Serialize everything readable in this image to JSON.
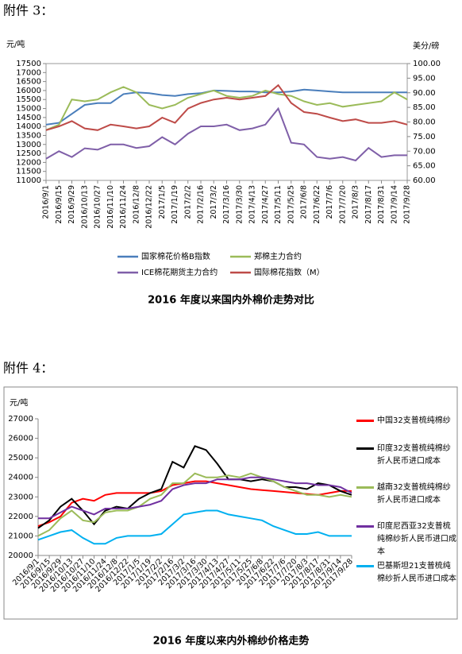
{
  "headings": [
    "附件 3：",
    "附件 4："
  ],
  "chart_data": [
    {
      "type": "line",
      "title": "2016 年度以来国内外棉价走势对比",
      "y_label": "元/吨",
      "y2_label": "美分/磅",
      "categories": [
        "2016/9/1",
        "2016/9/15",
        "2016/9/29",
        "2016/10/13",
        "2016/10/27",
        "2016/11/10",
        "2016/11/24",
        "2016/12/8",
        "2016/12/22",
        "2017/1/5",
        "2017/1/19",
        "2017/2/2",
        "2017/2/16",
        "2017/3/2",
        "2017/3/16",
        "2017/3/30",
        "2017/4/13",
        "2017/4/27",
        "2017/5/11",
        "2017/5/25",
        "2017/6/8",
        "2017/6/22",
        "2017/7/6",
        "2017/7/20",
        "2017/8/3",
        "2017/8/17",
        "2017/8/31",
        "2017/9/14",
        "2017/9/28"
      ],
      "ylim": [
        11000,
        17500
      ],
      "yticks": [
        11000,
        11500,
        12000,
        12500,
        13000,
        13500,
        14000,
        14500,
        15000,
        15500,
        16000,
        16500,
        17000,
        17500
      ],
      "y2lim": [
        60,
        100
      ],
      "y2ticks": [
        {
          "value": 60,
          "label": "60.00"
        },
        {
          "value": 65,
          "label": "65.00"
        },
        {
          "value": 70,
          "label": "70.00"
        },
        {
          "value": 75,
          "label": "75.00"
        },
        {
          "value": 80,
          "label": "80.00"
        },
        {
          "value": 85,
          "label": "85.00"
        },
        {
          "value": 90,
          "label": "90.00"
        },
        {
          "value": 95,
          "label": "95.00"
        },
        {
          "value": 100,
          "label": "100.00"
        }
      ],
      "series": [
        {
          "name": "国家棉花价格B指数",
          "color": "#4a7ebb",
          "values": [
            14100,
            14200,
            14700,
            15200,
            15300,
            15300,
            15800,
            15900,
            15850,
            15750,
            15700,
            15800,
            15850,
            16000,
            15980,
            15950,
            15950,
            15900,
            15900,
            15950,
            16050,
            16000,
            15950,
            15900,
            15900,
            15900,
            15900,
            15900,
            15900
          ]
        },
        {
          "name": "郑棉主力合约",
          "color": "#9bbb59",
          "values": [
            13800,
            14100,
            15500,
            15400,
            15500,
            15900,
            16200,
            15900,
            15200,
            15000,
            15200,
            15600,
            15800,
            16000,
            15700,
            15600,
            15700,
            16000,
            15800,
            15700,
            15400,
            15200,
            15300,
            15100,
            15200,
            15300,
            15400,
            15900,
            15500
          ]
        },
        {
          "name": "ICE棉花期货主力合约",
          "color": "#7f5fa8",
          "axis": "y2",
          "values": [
            67.4,
            70,
            68,
            71,
            70.5,
            72.3,
            72.3,
            71.1,
            71.7,
            74.8,
            72.3,
            76,
            78.5,
            78.5,
            79.1,
            77.2,
            77.8,
            79.1,
            84.6,
            72.9,
            72.3,
            68,
            67.4,
            68,
            66.8,
            71.1,
            68,
            68.6,
            68.6
          ]
        },
        {
          "name": "国际棉花指数（M）",
          "color": "#be4b48",
          "axis": "y2",
          "values": [
            77.2,
            78.5,
            80.3,
            77.8,
            77.2,
            79.1,
            78.5,
            77.8,
            78.5,
            81.5,
            79.7,
            84.6,
            86.5,
            87.7,
            88.3,
            87.7,
            88.3,
            88.9,
            92.6,
            86.5,
            83.4,
            82.8,
            81.5,
            80.3,
            80.9,
            79.7,
            79.7,
            80.3,
            79.1
          ]
        }
      ]
    },
    {
      "type": "line",
      "title": "2016 年度以来内外棉纱价格走势",
      "y_label": "元/吨",
      "categories": [
        "2016/9/1",
        "2016/9/15",
        "2016/9/29",
        "2016/10/13",
        "2016/10/27",
        "2016/11/10",
        "2016/11/24",
        "2016/12/8",
        "2016/12/22",
        "2017/1/5",
        "2017/1/19",
        "2017/2/2",
        "2017/2/16",
        "2017/3/2",
        "2017/3/16",
        "2017/3/30",
        "2017/4/13",
        "2017/4/27",
        "2017/5/11",
        "2017/5/25",
        "2017/6/8",
        "2017/6/22",
        "2017/7/6",
        "2017/7/20",
        "2017/8/3",
        "2017/8/17",
        "2017/8/31",
        "2017/9/14",
        "2017/9/28"
      ],
      "ylim": [
        20000,
        27000
      ],
      "yticks": [
        20000,
        21000,
        22000,
        23000,
        24000,
        25000,
        26000,
        27000
      ],
      "series": [
        {
          "name": "中国32支普梳纯棉纱",
          "color": "#ff0000",
          "values": [
            21500,
            21700,
            22000,
            22700,
            22900,
            22800,
            23100,
            23200,
            23200,
            23200,
            23200,
            23300,
            23600,
            23700,
            23800,
            23800,
            23700,
            23600,
            23500,
            23400,
            23350,
            23300,
            23250,
            23200,
            23150,
            23100,
            23200,
            23300,
            23300
          ]
        },
        {
          "name": "印度32支普梳纯棉纱折人民币进口成本",
          "color": "#000000",
          "values": [
            21400,
            21800,
            22500,
            22900,
            22300,
            21600,
            22300,
            22500,
            22400,
            22900,
            23200,
            23400,
            24800,
            24500,
            25600,
            25400,
            24700,
            23900,
            23900,
            23800,
            23900,
            23800,
            23500,
            23500,
            23400,
            23700,
            23600,
            23300,
            23100
          ]
        },
        {
          "name": "越南32支普梳纯棉纱折人民币进口成本",
          "color": "#9bbb59",
          "values": [
            21000,
            21300,
            21900,
            22300,
            21800,
            21700,
            22200,
            22300,
            22300,
            22500,
            22900,
            23100,
            23700,
            23700,
            24200,
            24000,
            24000,
            24100,
            24000,
            24200,
            24000,
            23800,
            23500,
            23300,
            23100,
            23100,
            23000,
            23100,
            23000
          ]
        },
        {
          "name": "印度尼西亚32支普梳纯棉纱折人民币进口成本",
          "color": "#7030a0",
          "values": [
            21900,
            21900,
            22200,
            22500,
            22300,
            22100,
            22400,
            22400,
            22400,
            22500,
            22600,
            22800,
            23400,
            23600,
            23700,
            23700,
            23900,
            23900,
            23900,
            24000,
            24000,
            23900,
            23800,
            23700,
            23700,
            23600,
            23600,
            23500,
            23200
          ]
        },
        {
          "name": "巴基斯坦21支普梳纯棉纱折人民币进口成本",
          "color": "#00b0f0",
          "values": [
            20800,
            21000,
            21200,
            21300,
            20900,
            20600,
            20600,
            20900,
            21000,
            21000,
            21000,
            21100,
            21600,
            22100,
            22200,
            22300,
            22300,
            22100,
            22000,
            21900,
            21800,
            21500,
            21300,
            21100,
            21100,
            21200,
            21000,
            21000,
            21000
          ]
        }
      ]
    }
  ]
}
